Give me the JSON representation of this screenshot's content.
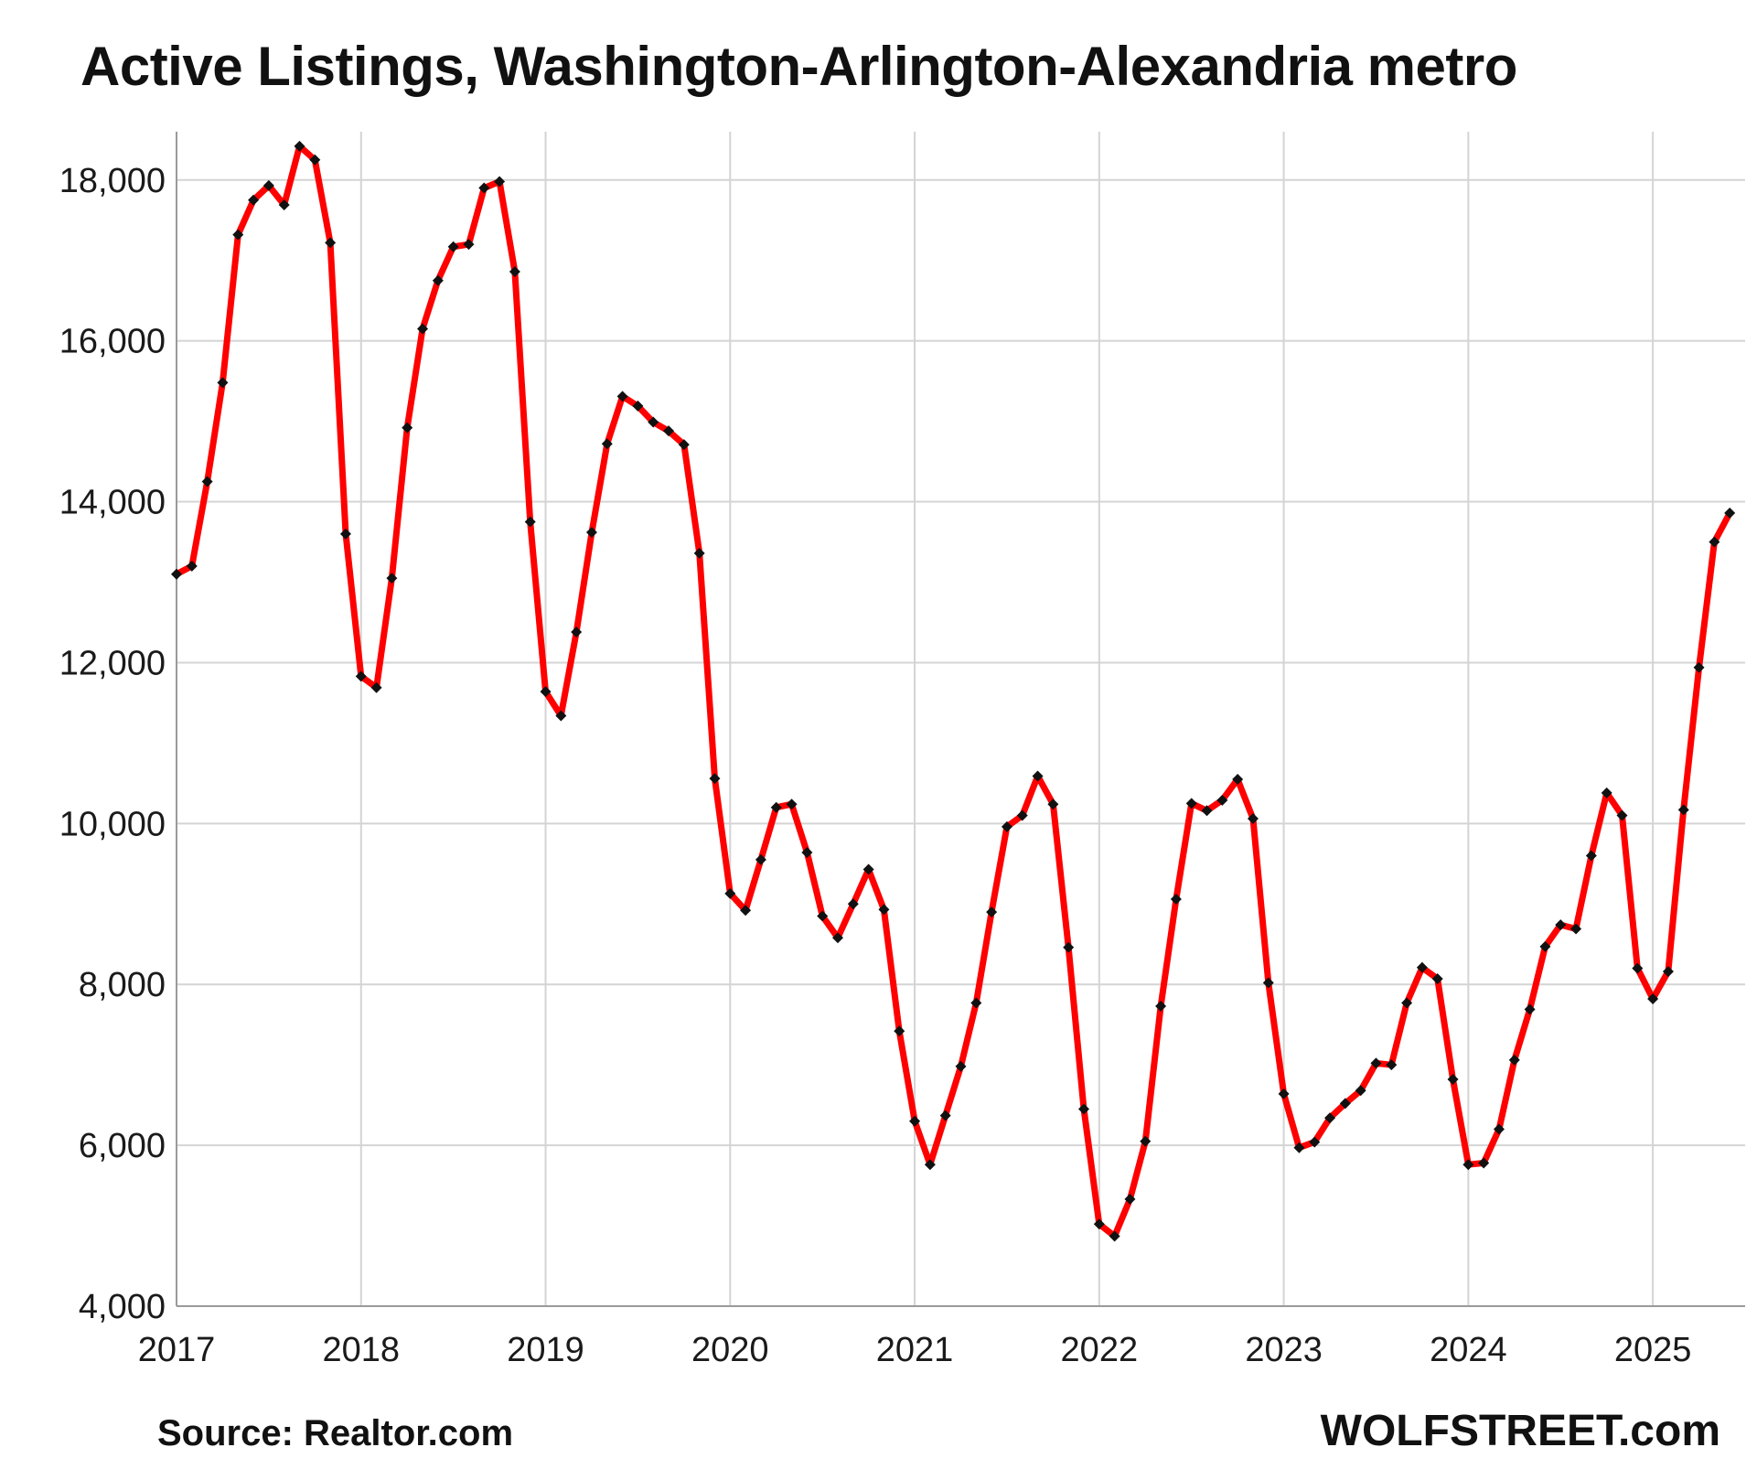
{
  "chart_data": {
    "type": "line",
    "title": "Active Listings, Washington-Arlington-Alexandria metro",
    "xlabel": "",
    "ylabel": "",
    "x_tick_labels": [
      "2017",
      "2018",
      "2019",
      "2020",
      "2021",
      "2022",
      "2023",
      "2024",
      "2025"
    ],
    "y_tick_labels": [
      "4,000",
      "6,000",
      "8,000",
      "10,000",
      "12,000",
      "14,000",
      "16,000",
      "18,000"
    ],
    "y_ticks": [
      4000,
      6000,
      8000,
      10000,
      12000,
      14000,
      16000,
      18000
    ],
    "ylim": [
      4000,
      18600
    ],
    "xlim": [
      "2017-01",
      "2025-07"
    ],
    "grid": true,
    "legend": "none",
    "series": [
      {
        "color": "#ff0000",
        "marker_color": "#111111",
        "points": [
          [
            "2017-01",
            13100
          ],
          [
            "2017-02",
            13200
          ],
          [
            "2017-03",
            14250
          ],
          [
            "2017-04",
            15480
          ],
          [
            "2017-05",
            17320
          ],
          [
            "2017-06",
            17750
          ],
          [
            "2017-07",
            17930
          ],
          [
            "2017-08",
            17690
          ],
          [
            "2017-09",
            18420
          ],
          [
            "2017-10",
            18250
          ],
          [
            "2017-11",
            17220
          ],
          [
            "2017-12",
            13600
          ],
          [
            "2018-01",
            11830
          ],
          [
            "2018-02",
            11690
          ],
          [
            "2018-03",
            13050
          ],
          [
            "2018-04",
            14920
          ],
          [
            "2018-05",
            16150
          ],
          [
            "2018-06",
            16750
          ],
          [
            "2018-07",
            17170
          ],
          [
            "2018-08",
            17200
          ],
          [
            "2018-09",
            17900
          ],
          [
            "2018-10",
            17980
          ],
          [
            "2018-11",
            16860
          ],
          [
            "2018-12",
            13750
          ],
          [
            "2019-01",
            11640
          ],
          [
            "2019-02",
            11340
          ],
          [
            "2019-03",
            12380
          ],
          [
            "2019-04",
            13620
          ],
          [
            "2019-05",
            14720
          ],
          [
            "2019-06",
            15310
          ],
          [
            "2019-07",
            15190
          ],
          [
            "2019-08",
            14990
          ],
          [
            "2019-09",
            14880
          ],
          [
            "2019-10",
            14710
          ],
          [
            "2019-11",
            13360
          ],
          [
            "2019-12",
            10560
          ],
          [
            "2020-01",
            9130
          ],
          [
            "2020-02",
            8920
          ],
          [
            "2020-03",
            9550
          ],
          [
            "2020-04",
            10200
          ],
          [
            "2020-05",
            10240
          ],
          [
            "2020-06",
            9640
          ],
          [
            "2020-07",
            8850
          ],
          [
            "2020-08",
            8580
          ],
          [
            "2020-09",
            9000
          ],
          [
            "2020-10",
            9430
          ],
          [
            "2020-11",
            8930
          ],
          [
            "2020-12",
            7420
          ],
          [
            "2021-01",
            6300
          ],
          [
            "2021-02",
            5760
          ],
          [
            "2021-03",
            6370
          ],
          [
            "2021-04",
            6980
          ],
          [
            "2021-05",
            7770
          ],
          [
            "2021-06",
            8900
          ],
          [
            "2021-07",
            9960
          ],
          [
            "2021-08",
            10100
          ],
          [
            "2021-09",
            10590
          ],
          [
            "2021-10",
            10240
          ],
          [
            "2021-11",
            8460
          ],
          [
            "2021-12",
            6450
          ],
          [
            "2022-01",
            5020
          ],
          [
            "2022-02",
            4870
          ],
          [
            "2022-03",
            5330
          ],
          [
            "2022-04",
            6050
          ],
          [
            "2022-05",
            7730
          ],
          [
            "2022-06",
            9060
          ],
          [
            "2022-07",
            10250
          ],
          [
            "2022-08",
            10160
          ],
          [
            "2022-09",
            10290
          ],
          [
            "2022-10",
            10550
          ],
          [
            "2022-11",
            10060
          ],
          [
            "2022-12",
            8020
          ],
          [
            "2023-01",
            6640
          ],
          [
            "2023-02",
            5970
          ],
          [
            "2023-03",
            6040
          ],
          [
            "2023-04",
            6340
          ],
          [
            "2023-05",
            6520
          ],
          [
            "2023-06",
            6680
          ],
          [
            "2023-07",
            7020
          ],
          [
            "2023-08",
            7000
          ],
          [
            "2023-09",
            7770
          ],
          [
            "2023-10",
            8210
          ],
          [
            "2023-11",
            8070
          ],
          [
            "2023-12",
            6820
          ],
          [
            "2024-01",
            5760
          ],
          [
            "2024-02",
            5780
          ],
          [
            "2024-03",
            6200
          ],
          [
            "2024-04",
            7060
          ],
          [
            "2024-05",
            7690
          ],
          [
            "2024-06",
            8470
          ],
          [
            "2024-07",
            8740
          ],
          [
            "2024-08",
            8690
          ],
          [
            "2024-09",
            9600
          ],
          [
            "2024-10",
            10380
          ],
          [
            "2024-11",
            10100
          ],
          [
            "2024-12",
            8200
          ],
          [
            "2025-01",
            7820
          ],
          [
            "2025-02",
            8160
          ],
          [
            "2025-03",
            10170
          ],
          [
            "2025-04",
            11940
          ],
          [
            "2025-05",
            13500
          ],
          [
            "2025-06",
            13860
          ]
        ]
      }
    ]
  },
  "footer": {
    "source": "Source: Realtor.com",
    "brand": "WOLFSTREET.com"
  }
}
